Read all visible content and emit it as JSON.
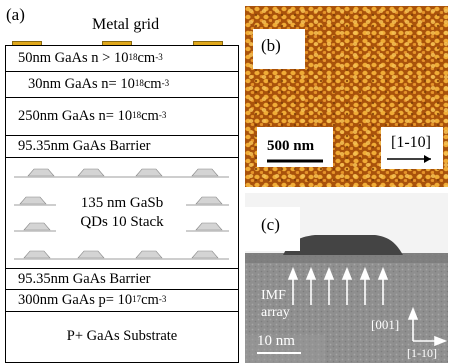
{
  "panel_a": {
    "label": "(a)",
    "top_title": "Metal grid",
    "layers": [
      {
        "pre": "50nm GaAs n > 10",
        "sup": "18",
        "mid": " cm",
        "sup2": "-3"
      },
      {
        "pre": "30nm GaAs n= 10",
        "sup": "18",
        "mid": " cm",
        "sup2": "-3"
      },
      {
        "pre": "250nm GaAs n= 10",
        "sup": "18",
        "mid": " cm",
        "sup2": "-3"
      },
      {
        "text": "95.35nm GaAs Barrier"
      },
      {
        "text": "95.35nm GaAs Barrier"
      },
      {
        "pre": "300nm GaAs p= 10",
        "sup": "17",
        "mid": "cm",
        "sup2": "-3"
      },
      {
        "text": "P+ GaAs Substrate"
      }
    ],
    "qd_label_1": "135 nm  GaSb",
    "qd_label_2": "QDs 10 Stack"
  },
  "panel_b": {
    "label": "(b)",
    "scale_text": "500 nm",
    "direction": "[1-10]"
  },
  "panel_c": {
    "label": "(c)",
    "imf_1": "IMF",
    "imf_2": "array",
    "dir_001": "[001]",
    "dir_110": "[1-10]",
    "scale_text": "10 nm"
  },
  "colors": {
    "metal_grid": "#e0a81c",
    "afm_base": "#b35a0c",
    "afm_dots": "#f2b23e",
    "tem_bg": "#9a9a9a"
  }
}
